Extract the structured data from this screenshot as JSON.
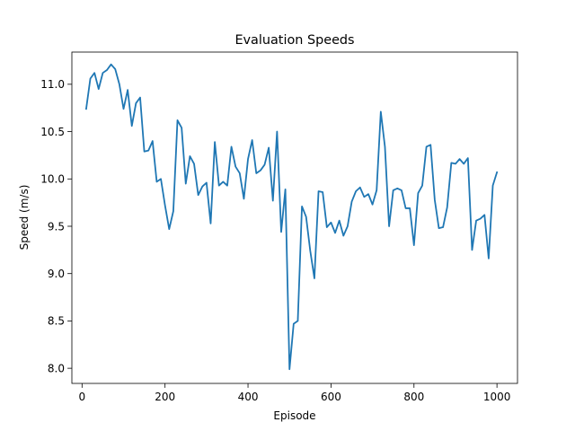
{
  "chart_data": {
    "type": "line",
    "title": "Evaluation Speeds",
    "xlabel": "Episode",
    "ylabel": "Speed (m/s)",
    "xlim": [
      -24.5,
      1049.5
    ],
    "ylim": [
      7.84,
      11.34
    ],
    "xticks": [
      0,
      200,
      400,
      600,
      800,
      1000
    ],
    "yticks": [
      8.0,
      8.5,
      9.0,
      9.5,
      10.0,
      10.5,
      11.0
    ],
    "xtick_labels": [
      "0",
      "200",
      "400",
      "600",
      "800",
      "1000"
    ],
    "ytick_labels": [
      "8.0",
      "8.5",
      "9.0",
      "9.5",
      "10.0",
      "10.5",
      "11.0"
    ],
    "grid": false,
    "line_color": "#1f77b4",
    "series": [
      {
        "x": [
          10,
          20,
          30,
          40,
          50,
          60,
          70,
          80,
          90,
          100,
          110,
          120,
          130,
          140,
          150,
          160,
          170,
          180,
          190,
          200,
          210,
          220,
          230,
          240,
          250,
          260,
          270,
          280,
          290,
          300,
          310,
          320,
          330,
          340,
          350,
          360,
          370,
          380,
          390,
          400,
          410,
          420,
          430,
          440,
          450,
          460,
          470,
          480,
          490,
          500,
          510,
          520,
          530,
          540,
          550,
          560,
          570,
          580,
          590,
          600,
          610,
          620,
          630,
          640,
          650,
          660,
          670,
          680,
          690,
          700,
          710,
          720,
          730,
          740,
          750,
          760,
          770,
          780,
          790,
          800,
          810,
          820,
          830,
          840,
          850,
          860,
          870,
          880,
          890,
          900,
          910,
          920,
          930,
          940,
          950,
          960,
          970,
          980,
          990,
          1000
        ],
        "y": [
          10.74,
          11.06,
          11.12,
          10.95,
          11.12,
          11.15,
          11.21,
          11.16,
          11.0,
          10.74,
          10.94,
          10.56,
          10.8,
          10.86,
          10.29,
          10.3,
          10.4,
          9.97,
          10.0,
          9.72,
          9.47,
          9.66,
          10.62,
          10.54,
          9.95,
          10.24,
          10.16,
          9.83,
          9.92,
          9.96,
          9.53,
          10.39,
          9.93,
          9.97,
          9.93,
          10.34,
          10.13,
          10.06,
          9.79,
          10.21,
          10.41,
          10.06,
          10.09,
          10.15,
          10.33,
          9.77,
          10.5,
          9.44,
          9.89,
          7.99,
          8.47,
          8.5,
          9.71,
          9.6,
          9.24,
          8.95,
          9.87,
          9.86,
          9.49,
          9.54,
          9.43,
          9.56,
          9.4,
          9.5,
          9.76,
          9.87,
          9.91,
          9.81,
          9.84,
          9.73,
          9.88,
          10.71,
          10.34,
          9.5,
          9.88,
          9.9,
          9.88,
          9.69,
          9.69,
          9.3,
          9.85,
          9.93,
          10.34,
          10.36,
          9.78,
          9.48,
          9.49,
          9.7,
          10.17,
          10.16,
          10.21,
          10.16,
          10.22,
          9.25,
          9.56,
          9.58,
          9.62,
          9.16,
          9.93,
          10.07
        ]
      }
    ]
  }
}
